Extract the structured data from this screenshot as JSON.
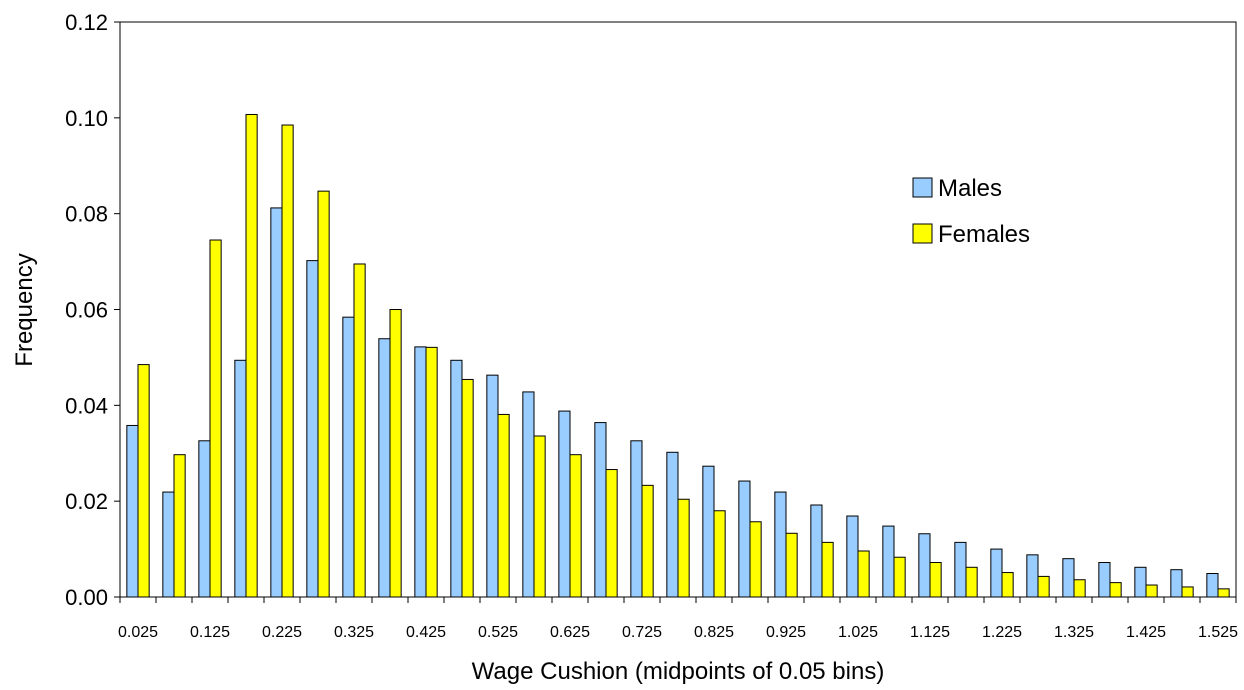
{
  "chart_data": {
    "type": "bar",
    "xlabel": "Wage Cushion (midpoints of 0.05 bins)",
    "ylabel": "Frequency",
    "ylim": [
      0,
      0.12
    ],
    "yticks": [
      "0.00",
      "0.02",
      "0.04",
      "0.06",
      "0.08",
      "0.10",
      "0.12"
    ],
    "categories": [
      "0.025",
      "0.075",
      "0.125",
      "0.175",
      "0.225",
      "0.275",
      "0.325",
      "0.375",
      "0.425",
      "0.475",
      "0.525",
      "0.575",
      "0.625",
      "0.675",
      "0.725",
      "0.775",
      "0.825",
      "0.875",
      "0.925",
      "0.975",
      "1.025",
      "1.075",
      "1.125",
      "1.175",
      "1.225",
      "1.275",
      "1.325",
      "1.375",
      "1.425",
      "1.475",
      "1.525"
    ],
    "xtick_labels": [
      "0.025",
      "0.125",
      "0.225",
      "0.325",
      "0.425",
      "0.525",
      "0.625",
      "0.725",
      "0.825",
      "0.925",
      "1.025",
      "1.125",
      "1.225",
      "1.325",
      "1.425",
      "1.525"
    ],
    "grid": false,
    "legend_position": "right",
    "series": [
      {
        "name": "Males",
        "color": "#99ccff",
        "values": [
          0.0358,
          0.0219,
          0.0326,
          0.0494,
          0.0812,
          0.0702,
          0.0584,
          0.0539,
          0.0522,
          0.0494,
          0.0463,
          0.0428,
          0.0388,
          0.0364,
          0.0326,
          0.0302,
          0.0273,
          0.0242,
          0.0219,
          0.0192,
          0.0169,
          0.0148,
          0.0132,
          0.0114,
          0.01,
          0.0088,
          0.008,
          0.0072,
          0.0062,
          0.0057,
          0.0049
        ]
      },
      {
        "name": "Females",
        "color": "#ffff00",
        "values": [
          0.0485,
          0.0297,
          0.0745,
          0.1007,
          0.0985,
          0.0847,
          0.0695,
          0.06,
          0.0521,
          0.0454,
          0.0381,
          0.0336,
          0.0297,
          0.0266,
          0.0233,
          0.0204,
          0.018,
          0.0157,
          0.0133,
          0.0114,
          0.0096,
          0.0083,
          0.0072,
          0.0062,
          0.0051,
          0.0043,
          0.0036,
          0.003,
          0.0025,
          0.0021,
          0.0017
        ]
      }
    ]
  }
}
